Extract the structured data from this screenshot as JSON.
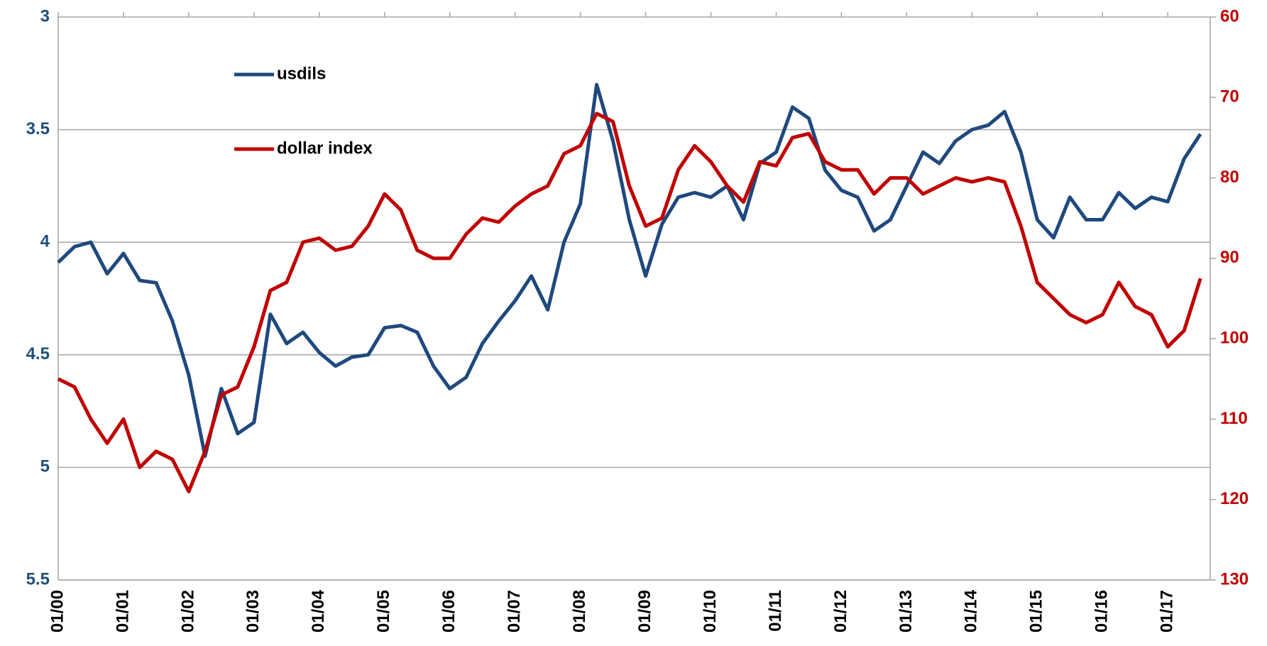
{
  "chart_data": {
    "type": "line",
    "categories": [
      "01/00",
      null,
      null,
      null,
      "01/01",
      null,
      null,
      null,
      "01/02",
      null,
      null,
      null,
      "01/03",
      null,
      null,
      null,
      "01/04",
      null,
      null,
      null,
      "01/05",
      null,
      null,
      null,
      "01/06",
      null,
      null,
      null,
      "01/07",
      null,
      null,
      null,
      "01/08",
      null,
      null,
      null,
      "01/09",
      null,
      null,
      null,
      "01/10",
      null,
      null,
      null,
      "01/11",
      null,
      null,
      null,
      "01/12",
      null,
      null,
      null,
      "01/13",
      null,
      null,
      null,
      "01/14",
      null,
      null,
      null,
      "01/15",
      null,
      null,
      null,
      "01/16",
      null,
      null,
      null,
      "01/17",
      null,
      null
    ],
    "series": [
      {
        "name": "usdils",
        "color": "#1f497d",
        "values": [
          4.09,
          4.02,
          4.0,
          4.14,
          4.05,
          4.17,
          4.18,
          4.35,
          4.59,
          4.95,
          4.65,
          4.85,
          4.8,
          4.32,
          4.45,
          4.4,
          4.49,
          4.55,
          4.51,
          4.5,
          4.38,
          4.37,
          4.4,
          4.55,
          4.65,
          4.6,
          4.45,
          4.35,
          4.26,
          4.15,
          4.3,
          4.0,
          3.83,
          3.3,
          3.55,
          3.9,
          4.15,
          3.92,
          3.8,
          3.78,
          3.8,
          3.75,
          3.9,
          3.65,
          3.6,
          3.4,
          3.45,
          3.68,
          3.77,
          3.8,
          3.95,
          3.9,
          3.75,
          3.6,
          3.65,
          3.55,
          3.5,
          3.48,
          3.42,
          3.6,
          3.9,
          3.98,
          3.8,
          3.9,
          3.9,
          3.78,
          3.85,
          3.8,
          3.82,
          3.63,
          3.52
        ]
      },
      {
        "name": "dollar index",
        "color": "#c00000",
        "axis": "y2",
        "values": [
          105,
          106,
          110,
          113,
          110,
          116,
          114,
          115,
          119,
          114,
          107,
          106,
          101,
          94,
          93,
          88,
          87.5,
          89,
          88.5,
          86,
          82,
          84,
          89,
          90,
          90,
          87,
          85,
          85.5,
          83.5,
          82,
          81,
          77,
          76,
          72,
          73,
          81,
          86,
          85,
          79,
          76,
          78,
          81,
          83,
          78,
          78.5,
          75,
          74.5,
          78,
          79,
          79,
          82,
          80,
          80,
          82,
          81,
          80,
          80.5,
          80,
          80.5,
          86,
          93,
          95,
          97,
          98,
          97,
          93,
          96,
          97,
          101,
          99,
          92.5
        ]
      }
    ],
    "ylim": [
      5.5,
      3
    ],
    "yticks": [
      3,
      3.5,
      4,
      4.5,
      5,
      5.5
    ],
    "y2lim": [
      130,
      60
    ],
    "y2ticks": [
      60,
      70,
      80,
      90,
      100,
      110,
      120,
      130
    ],
    "ycolor": "#1f4e79",
    "y2color": "#c00000",
    "grid": true,
    "legend": "top-left"
  }
}
